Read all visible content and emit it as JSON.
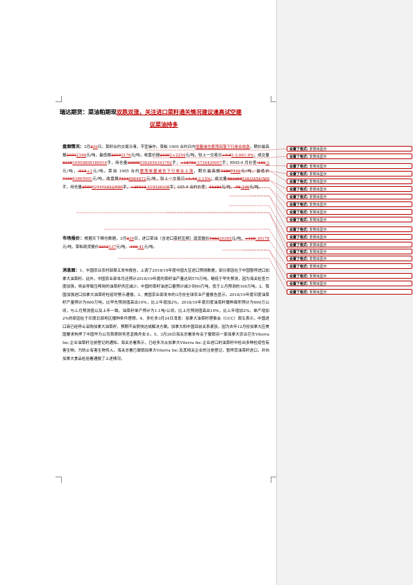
{
  "title": {
    "prefix": "瑞达期货：菜油粕期现",
    "red": "双跌双涨，关注进口菜籽通关情况建议逢高试空建",
    "line2": "议菜油持多"
  },
  "sidebar": {
    "title": ""
  },
  "comment_text": {
    "label": "设置了格式:",
    "value": "非突出显示"
  },
  "comments": 19,
  "para1": {
    "label": "盘面情况：",
    "t1": "3月",
    "del1": "2",
    "ins1": "26",
    "t2": "日，菜籽合约交易冷清，不宜操作。菜粕 1905 合约日内",
    "ins2": "增量减仓震荡回落下行单合收涨",
    "t3": "，期价最高报",
    "del3": "2191",
    "ins3": "2348",
    "t4": "元/吨，最低报",
    "del4": "2219",
    "ins4": "2176",
    "t5": "元/吨，收盘价报",
    "del5": "2336",
    "ins5": "2+2254",
    "t6": "元/吨，较上一交易日",
    "del6": "+0.8",
    "ins6": "1-2.661.9%",
    "t7": "；成交量",
    "del7": "8338",
    "ins7": "10959808180916",
    "t8": "手，持仓量",
    "del8": "39898",
    "ins8": "5362654341762",
    "t9": "手，",
    "del9": "+18758",
    "ins9": "-3734420957",
    "t10": "手；RM5-9 月价差",
    "del10": "-160",
    "ins10": "-3",
    "t11": "元/吨，",
    "del11": "-615",
    "ins11": "+3",
    "t12": "元/吨。菜油 1905 合约",
    "ins12": "震荡收量减仓下行单合上涨",
    "t13": "，期价最高报",
    "del13": "7180",
    "ins13": "7132",
    "t14": "元/吨，最低价",
    "del14": "7100",
    "ins14": "63865901",
    "t15": "元/吨，收盘报",
    "del15": "7114",
    "ins15": "6964472",
    "t16": "元/吨，较上一交易日",
    "del16": "+1.44",
    "ins16": "-2.15%",
    "t17": "；成交量",
    "del17": "403364",
    "ins17": "526/2454/580",
    "t18": "手，持仓量",
    "del18": "2550",
    "ins18": "624401622/680",
    "t19": "手，",
    "del19": "+20412",
    "ins19": "-210326338",
    "t20": "手；OI5-9 合约价差：",
    "del20": "44384",
    "t21": "元/吨，",
    "del21": "-76",
    "ins21": "-246",
    "t22": "元/吨。"
  },
  "para2": {
    "label": "市场报价：",
    "t1": "根据天下粮仓数据，3月",
    "del1": "2",
    "ins1": "26",
    "t2": "日，进口菜油（含进口菜籽压榨）现货报价",
    "del2": "7063",
    "ins2": "20365",
    "t3": "元/吨，",
    "del3": "+100",
    "ins3": "-30178",
    "t4": "元/吨，菜粕现货报价",
    "del4": "2212",
    "ins4": "137",
    "t5": "元/吨，",
    "del5": "-106",
    "ins5": "-41",
    "t6": "元/吨。"
  },
  "para3": {
    "label": "消息面：",
    "text": "1、中国农业农村部周五发布报告，上调了2018/19年度中国大豆进口预测数据，部分原因在于中国暂停进口加拿大油菜籽。此外，中国农业部本月还预计2018/19年度的菜籽油产量达到570万吨，略低于早先预测，因为海关检查力度加强，将会导致压榨用的油菜籽供应减少。中国的菜籽油进口量预计减少到90万吨，低于上月预测的100万吨。2、我国加强进口加拿大油菜籽检疫的警示通报。3、美国农业部发布的3月份全球农业产量报告显示，2018/19年度印度油菜籽产量预计为660万吨，比早先预测值高出10%，比上年增加2%。2018/19年度印度油菜籽播种面积预计为600万公顷，与上月预测值以及上年一致。油菜籽单产预计为1.1吨/公顷，比上月预测值高出10%，比上年增加2%。单产增加2%的原因在于印度北部地区播种条件理想。4、多伦多3月24日消息：加拿大油菜籽理事会（CCC）周五表示，中国进口商已经停止采购加拿大油菜籽，预期不会很快达成解决方案。加拿大和中国目前关系紧张，因为去年12月份加拿大应美国要求拘押了中国华为公司首席财务官孟晚舟女士。5、3月26日海关总署发布关于撤销另一家加拿大农业巨头Viterra Inc.企业油菜籽注册登记的通知。海关总署表示，已经多次从加拿大Viterra Inc.企业进口的油菜籽中检出多种检疫性有害生物。为防止有害生物传入，海关总署已撤销加拿大Viterra Inc.及其相关企业的注册登记，暂停其油菜籽进口，并向加拿大食品检验署通报了上述情况。"
  }
}
